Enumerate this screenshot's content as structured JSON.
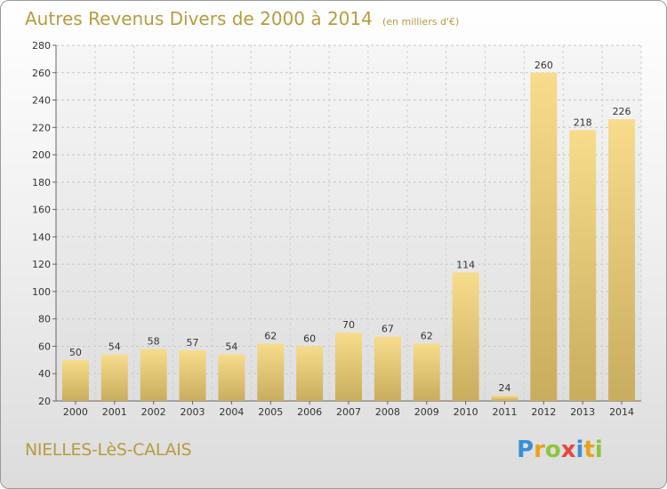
{
  "title": "Autres Revenus Divers de 2000 à 2014",
  "unit_note": "(en milliers d'€)",
  "commune": "NIELLES-LèS-CALAIS",
  "logo": {
    "letters": [
      "P",
      "r",
      "o",
      "x",
      "i",
      "t",
      "i"
    ],
    "colors": [
      "#3b8fd6",
      "#e8a21a",
      "#8cc63f",
      "#e8453c",
      "#3b8fd6",
      "#e8a21a",
      "#8cc63f"
    ]
  },
  "chart_data": {
    "type": "bar",
    "categories": [
      "2000",
      "2001",
      "2002",
      "2003",
      "2004",
      "2005",
      "2006",
      "2007",
      "2008",
      "2009",
      "2010",
      "2011",
      "2012",
      "2013",
      "2014"
    ],
    "values": [
      50,
      54,
      58,
      57,
      54,
      62,
      60,
      70,
      67,
      62,
      114,
      24,
      260,
      218,
      226
    ],
    "ylim": [
      20,
      280
    ],
    "yticks": [
      20,
      40,
      60,
      80,
      100,
      120,
      140,
      160,
      180,
      200,
      220,
      240,
      260,
      280
    ],
    "grid": true,
    "bar_color": "#e5c774"
  }
}
